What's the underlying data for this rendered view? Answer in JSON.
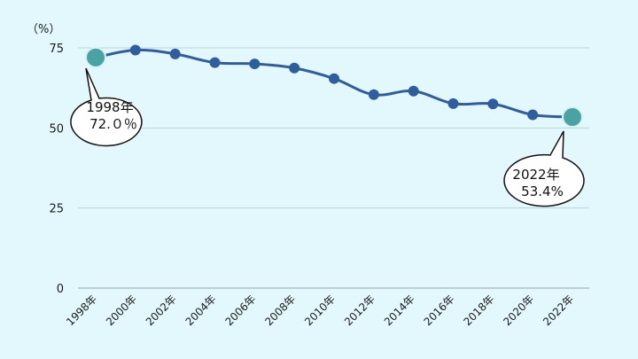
{
  "chart_data": {
    "type": "line",
    "title": "",
    "xlabel": "",
    "ylabel": "",
    "unit_label": "（%）",
    "ylim": [
      0,
      75
    ],
    "yticks": [
      "0",
      "25",
      "50",
      "75"
    ],
    "grid": true,
    "categories": [
      "1998年",
      "2000年",
      "2002年",
      "2004年",
      "2006年",
      "2008年",
      "2010年",
      "2012年",
      "2014年",
      "2016年",
      "2018年",
      "2020年",
      "2022年"
    ],
    "values": [
      72.0,
      74.3,
      73.1,
      70.4,
      70.0,
      68.7,
      65.4,
      60.4,
      61.5,
      57.6,
      57.5,
      54.1,
      53.4
    ],
    "line_color": "#2f5d9e",
    "highlight_color": "#4aa3a3",
    "callouts": [
      {
        "index": 0,
        "line1": "1998年",
        "line2": "72.０％"
      },
      {
        "index": 12,
        "line1": "2022年",
        "line2": "53.4%"
      }
    ]
  }
}
